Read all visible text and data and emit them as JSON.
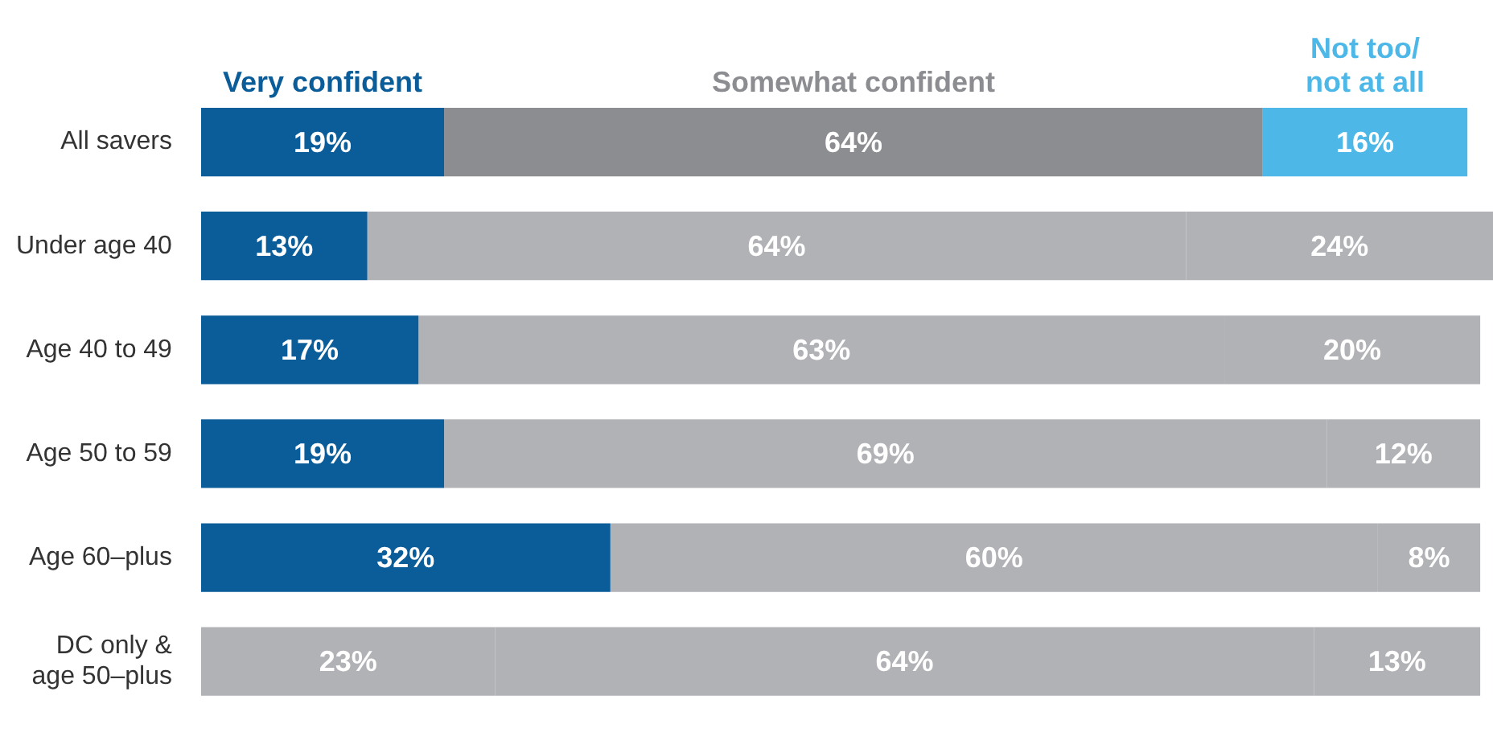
{
  "chart_data": {
    "type": "bar",
    "orientation": "horizontal",
    "stacked": true,
    "legend": "top",
    "tick_labels": "y",
    "categories": [
      "All savers",
      "Under age 40",
      "Age 40 to 49",
      "Age 50 to 59",
      "Age 60–plus",
      "DC only & age 50–plus"
    ],
    "series": [
      {
        "name": "Very confident",
        "color": "#0b5d9a",
        "colors": [
          "#0b5d9a",
          "#0b5d9a",
          "#0b5d9a",
          "#0b5d9a",
          "#0b5d9a",
          "#b1b2b6"
        ],
        "values": [
          19,
          13,
          17,
          19,
          32,
          23
        ],
        "value_labels": [
          "19%",
          "13%",
          "17%",
          "19%",
          "32%",
          "23%"
        ]
      },
      {
        "name": "Somewhat confident",
        "color": "#8c8d91",
        "colors": [
          "#8c8d91",
          "#b1b2b6",
          "#b1b2b6",
          "#b1b2b6",
          "#b1b2b6",
          "#b1b2b6"
        ],
        "values": [
          64,
          64,
          63,
          69,
          60,
          64
        ],
        "value_labels": [
          "64%",
          "64%",
          "63%",
          "69%",
          "60%",
          "64%"
        ]
      },
      {
        "name": "Not too/not at all",
        "color": "#4db8e8",
        "colors": [
          "#4db8e8",
          "#b1b2b6",
          "#b1b2b6",
          "#b1b2b6",
          "#b1b2b6",
          "#b1b2b6"
        ],
        "values": [
          16,
          24,
          20,
          12,
          8,
          13
        ],
        "value_labels": [
          "16%",
          "24%",
          "20%",
          "12%",
          "8%",
          "13%"
        ]
      }
    ]
  }
}
